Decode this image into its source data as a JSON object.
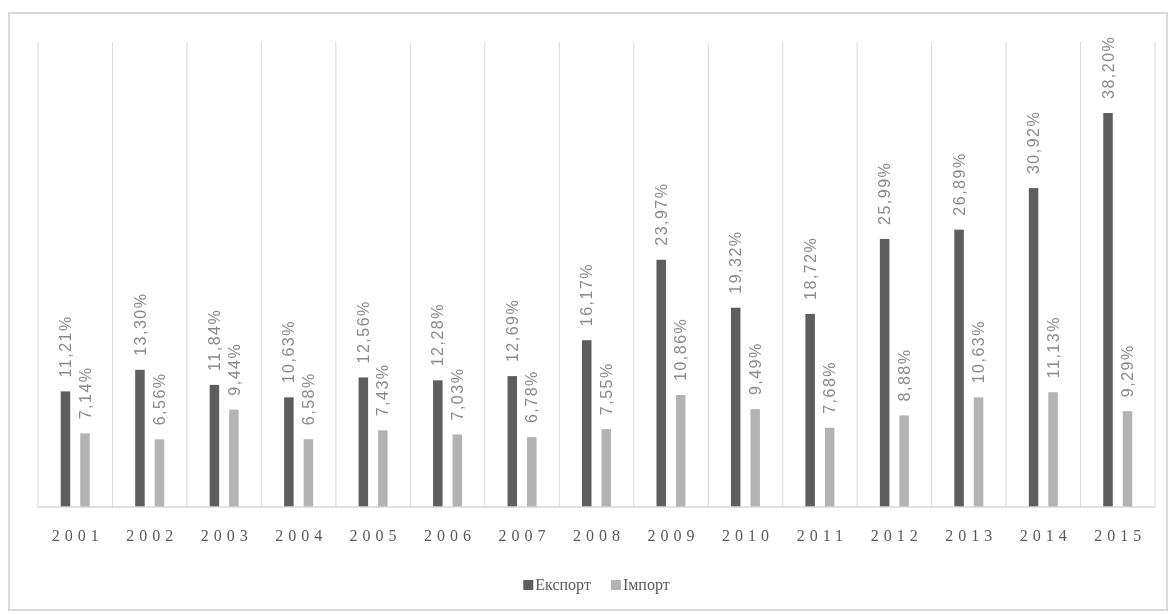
{
  "chart_data": {
    "type": "bar",
    "categories": [
      "2001",
      "2002",
      "2003",
      "2004",
      "2005",
      "2006",
      "2007",
      "2008",
      "2009",
      "2010",
      "2011",
      "2012",
      "2013",
      "2014",
      "2015"
    ],
    "series": [
      {
        "name": "Експорт",
        "color": "#5e5e5e",
        "values": [
          11.21,
          13.3,
          11.84,
          10.63,
          12.56,
          12.28,
          12.69,
          16.17,
          23.97,
          19.32,
          18.72,
          25.99,
          26.89,
          30.92,
          38.2
        ],
        "value_labels": [
          "11,21%",
          "13,30%",
          "11,84%",
          "10,63%",
          "12,56%",
          "12,28%",
          "12,69%",
          "16,17%",
          "23,97%",
          "19,32%",
          "18,72%",
          "25,99%",
          "26,89%",
          "30,92%",
          "38,20%"
        ]
      },
      {
        "name": "Імпорт",
        "color": "#b3b3b3",
        "values": [
          7.14,
          6.56,
          9.44,
          6.58,
          7.43,
          7.03,
          6.78,
          7.55,
          10.86,
          9.49,
          7.68,
          8.88,
          10.63,
          11.13,
          9.29
        ],
        "value_labels": [
          "7,14%",
          "6,56%",
          "9,44%",
          "6,58%",
          "7,43%",
          "7,03%",
          "6,78%",
          "7,55%",
          "10,86%",
          "9,49%",
          "7,68%",
          "8,88%",
          "10,63%",
          "11,13%",
          "9,29%"
        ]
      }
    ],
    "grid": "x",
    "legend": "bottom"
  }
}
